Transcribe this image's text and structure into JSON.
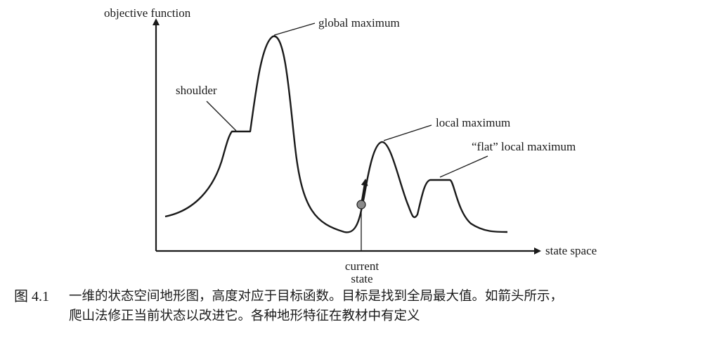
{
  "figure": {
    "axis_y_label": "objective function",
    "axis_x_label": "state space",
    "annotations": {
      "global_max": "global maximum",
      "shoulder": "shoulder",
      "local_max": "local maximum",
      "flat_local_max": "“flat” local maximum",
      "current_state_line1": "current",
      "current_state_line2": "state"
    },
    "colors": {
      "ink": "#1a1a1a",
      "current_state_point": "#8a8a8a"
    }
  },
  "caption": {
    "number": "图 4.1",
    "line1": "一维的状态空间地形图，高度对应于目标函数。目标是找到全局最大值。如箭头所示，",
    "line2": "爬山法修正当前状态以改进它。各种地形特征在教材中有定义"
  }
}
